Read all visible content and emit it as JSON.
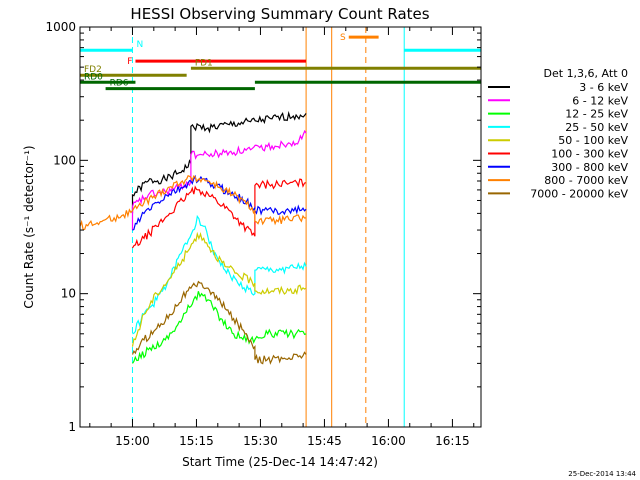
{
  "chart_data": {
    "type": "line",
    "title": "HESSI Observing Summary Count Rates",
    "xlabel": "Start Time (25-Dec-14 14:47:42)",
    "ylabel": "Count Rate (s⁻¹ detector⁻¹)",
    "x_unit": "minutes after 14:47:42 UT",
    "xlim": [
      0,
      94
    ],
    "ylim": [
      1,
      1000
    ],
    "y_scale": "log",
    "x_ticks": [
      {
        "label": "15:00",
        "x": 12.3
      },
      {
        "label": "15:15",
        "x": 27.3
      },
      {
        "label": "15:30",
        "x": 42.3
      },
      {
        "label": "15:45",
        "x": 57.3
      },
      {
        "label": "16:00",
        "x": 72.3
      },
      {
        "label": "16:15",
        "x": 87.3
      }
    ],
    "y_ticks": [
      {
        "label": "1",
        "y": 1
      },
      {
        "label": "10",
        "y": 10
      },
      {
        "label": "100",
        "y": 100
      },
      {
        "label": "1000",
        "y": 1000
      }
    ],
    "legend_title": "Det 1,3,6, Att 0",
    "legend_position": "right",
    "series": [
      {
        "name": "3 - 6 keV",
        "color": "#000000",
        "points": [
          [
            12.3,
            40
          ],
          [
            12.3,
            55
          ],
          [
            16,
            70
          ],
          [
            20,
            72
          ],
          [
            23,
            80
          ],
          [
            26,
            95
          ],
          [
            26,
            180
          ],
          [
            30,
            175
          ],
          [
            35,
            185
          ],
          [
            40,
            195
          ],
          [
            45,
            205
          ],
          [
            50,
            215
          ],
          [
            53,
            225
          ]
        ]
      },
      {
        "name": "6 - 12 keV",
        "color": "#ff00ff",
        "points": [
          [
            12.3,
            30
          ],
          [
            12.3,
            45
          ],
          [
            16,
            55
          ],
          [
            20,
            58
          ],
          [
            23,
            62
          ],
          [
            26,
            70
          ],
          [
            26,
            110
          ],
          [
            30,
            110
          ],
          [
            35,
            115
          ],
          [
            40,
            120
          ],
          [
            45,
            128
          ],
          [
            50,
            138
          ],
          [
            52,
            145
          ],
          [
            53,
            160
          ]
        ]
      },
      {
        "name": "12 - 25 keV",
        "color": "#00ff00",
        "points": [
          [
            12.3,
            3
          ],
          [
            16,
            3.8
          ],
          [
            20,
            4.5
          ],
          [
            24,
            6.5
          ],
          [
            27,
            9.5
          ],
          [
            28.5,
            10
          ],
          [
            30,
            9
          ],
          [
            33,
            6.5
          ],
          [
            36,
            5
          ],
          [
            40,
            4.5
          ],
          [
            44,
            5
          ],
          [
            48,
            5
          ],
          [
            53,
            5
          ]
        ]
      },
      {
        "name": "25 - 50 keV",
        "color": "#00ffff",
        "points": [
          [
            12.3,
            5
          ],
          [
            15,
            7
          ],
          [
            18,
            9
          ],
          [
            21,
            13
          ],
          [
            24,
            21
          ],
          [
            26.5,
            30
          ],
          [
            27.5,
            38
          ],
          [
            29,
            32
          ],
          [
            31,
            22
          ],
          [
            34,
            15
          ],
          [
            37,
            12
          ],
          [
            41,
            10
          ],
          [
            41,
            15
          ],
          [
            45,
            15
          ],
          [
            49,
            15.5
          ],
          [
            53,
            16
          ]
        ]
      },
      {
        "name": "50 - 100 keV",
        "color": "#cccc00",
        "points": [
          [
            12.3,
            4
          ],
          [
            15,
            7
          ],
          [
            18,
            10
          ],
          [
            21,
            13
          ],
          [
            24,
            18
          ],
          [
            26.5,
            24
          ],
          [
            27.5,
            28
          ],
          [
            29,
            26
          ],
          [
            31,
            21
          ],
          [
            34,
            16
          ],
          [
            37,
            14
          ],
          [
            41,
            12
          ],
          [
            41,
            10.5
          ],
          [
            45,
            10.5
          ],
          [
            49,
            10.5
          ],
          [
            53,
            11
          ]
        ]
      },
      {
        "name": "100 - 300 keV",
        "color": "#ff0000",
        "points": [
          [
            12.3,
            22
          ],
          [
            15,
            26
          ],
          [
            18,
            32
          ],
          [
            21,
            40
          ],
          [
            24,
            50
          ],
          [
            26,
            58
          ],
          [
            28,
            60
          ],
          [
            30,
            56
          ],
          [
            32,
            50
          ],
          [
            35,
            42
          ],
          [
            38,
            33
          ],
          [
            41,
            27
          ],
          [
            41,
            65
          ],
          [
            45,
            66
          ],
          [
            49,
            67
          ],
          [
            53,
            68
          ]
        ]
      },
      {
        "name": "300 - 800 keV",
        "color": "#0000ff",
        "points": [
          [
            12.3,
            30
          ],
          [
            15,
            40
          ],
          [
            18,
            48
          ],
          [
            21,
            56
          ],
          [
            24,
            62
          ],
          [
            26,
            70
          ],
          [
            28,
            72
          ],
          [
            30,
            68
          ],
          [
            33,
            62
          ],
          [
            36,
            55
          ],
          [
            39,
            49
          ],
          [
            41,
            44
          ],
          [
            41,
            42
          ],
          [
            45,
            42
          ],
          [
            49,
            42
          ],
          [
            53,
            43
          ]
        ]
      },
      {
        "name": "800 - 7000 keV",
        "color": "#ff8000",
        "points": [
          [
            0,
            32
          ],
          [
            4,
            34
          ],
          [
            8,
            37
          ],
          [
            12.3,
            42
          ],
          [
            15,
            48
          ],
          [
            18,
            55
          ],
          [
            21,
            63
          ],
          [
            24,
            70
          ],
          [
            27,
            75
          ],
          [
            30,
            70
          ],
          [
            33,
            62
          ],
          [
            36,
            55
          ],
          [
            39,
            47
          ],
          [
            41,
            42
          ],
          [
            41,
            35
          ],
          [
            45,
            35
          ],
          [
            49,
            36
          ],
          [
            53,
            37
          ]
        ]
      },
      {
        "name": "7000 - 20000 keV",
        "color": "#996600",
        "points": [
          [
            12.3,
            3.5
          ],
          [
            15,
            4.5
          ],
          [
            18,
            5.5
          ],
          [
            21,
            7
          ],
          [
            24,
            9.5
          ],
          [
            27,
            11.5
          ],
          [
            28.5,
            12
          ],
          [
            30,
            11
          ],
          [
            33,
            8.5
          ],
          [
            36,
            6.5
          ],
          [
            39,
            5
          ],
          [
            41,
            4
          ],
          [
            41,
            3.2
          ],
          [
            45,
            3.2
          ],
          [
            49,
            3.3
          ],
          [
            53,
            3.5
          ]
        ]
      }
    ],
    "interval_bars": [
      {
        "label": "N",
        "color": "#00ffff",
        "segments": [
          [
            0,
            12.3
          ],
          [
            76,
            94
          ]
        ],
        "level": 670
      },
      {
        "label": "S",
        "color": "#ff8000",
        "segments": [
          [
            63,
            70
          ]
        ],
        "level": 840
      },
      {
        "label": "F",
        "color": "#ff0000",
        "segments": [
          [
            13,
            53
          ]
        ],
        "level": 555
      },
      {
        "label": "FD1",
        "color": "#808000",
        "segments": [
          [
            26,
            94
          ]
        ],
        "level": 490
      },
      {
        "label": "FD2",
        "color": "#808000",
        "segments": [
          [
            0,
            25
          ]
        ],
        "level": 435
      },
      {
        "label": "RD0",
        "color": "#006600",
        "segments": [
          [
            0,
            13
          ],
          [
            41,
            94
          ]
        ],
        "level": 385
      },
      {
        "label": "RD6",
        "color": "#006600",
        "segments": [
          [
            6,
            41
          ]
        ],
        "level": 345
      }
    ],
    "vertical_lines": [
      {
        "x": 12.3,
        "color": "#00ffff",
        "style": "dashed"
      },
      {
        "x": 76,
        "color": "#00ffff",
        "style": "solid"
      },
      {
        "x": 94,
        "color": "#00ffff",
        "style": "dashed"
      },
      {
        "x": 53,
        "color": "#ff8000",
        "style": "solid"
      },
      {
        "x": 59,
        "color": "#ff8000",
        "style": "solid"
      },
      {
        "x": 67,
        "color": "#ff8000",
        "style": "dashed"
      }
    ],
    "timestamp": "25-Dec-2014 13:44"
  }
}
